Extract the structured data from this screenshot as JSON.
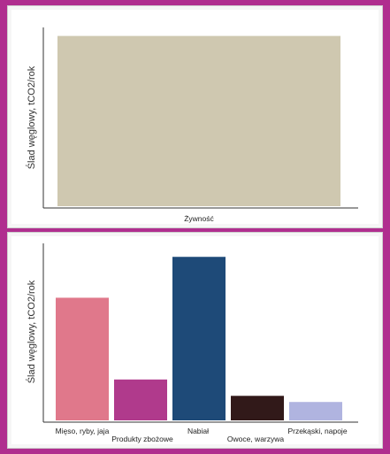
{
  "chart_data": [
    {
      "type": "bar",
      "categories": [
        "Żywność"
      ],
      "values": [
        100
      ],
      "ylabel": "Ślad węglowy, tCO2/rok",
      "ylim": [
        0,
        105
      ],
      "grid": false,
      "colors": [
        "#cfc8b0"
      ]
    },
    {
      "type": "bar",
      "categories": [
        "Mięso, ryby, jaja",
        "Produkty zbożowe",
        "Nabiał",
        "Owoce, warzywa",
        "Przekąski, napoje"
      ],
      "values": [
        30,
        10,
        40,
        6,
        4.5
      ],
      "ylabel": "Ślad węglowy, tCO2/rok",
      "ylim": [
        0,
        42
      ],
      "grid": false,
      "colors": [
        "#e0788b",
        "#b03a8c",
        "#1e4a78",
        "#311919",
        "#b0b4e0"
      ]
    }
  ]
}
